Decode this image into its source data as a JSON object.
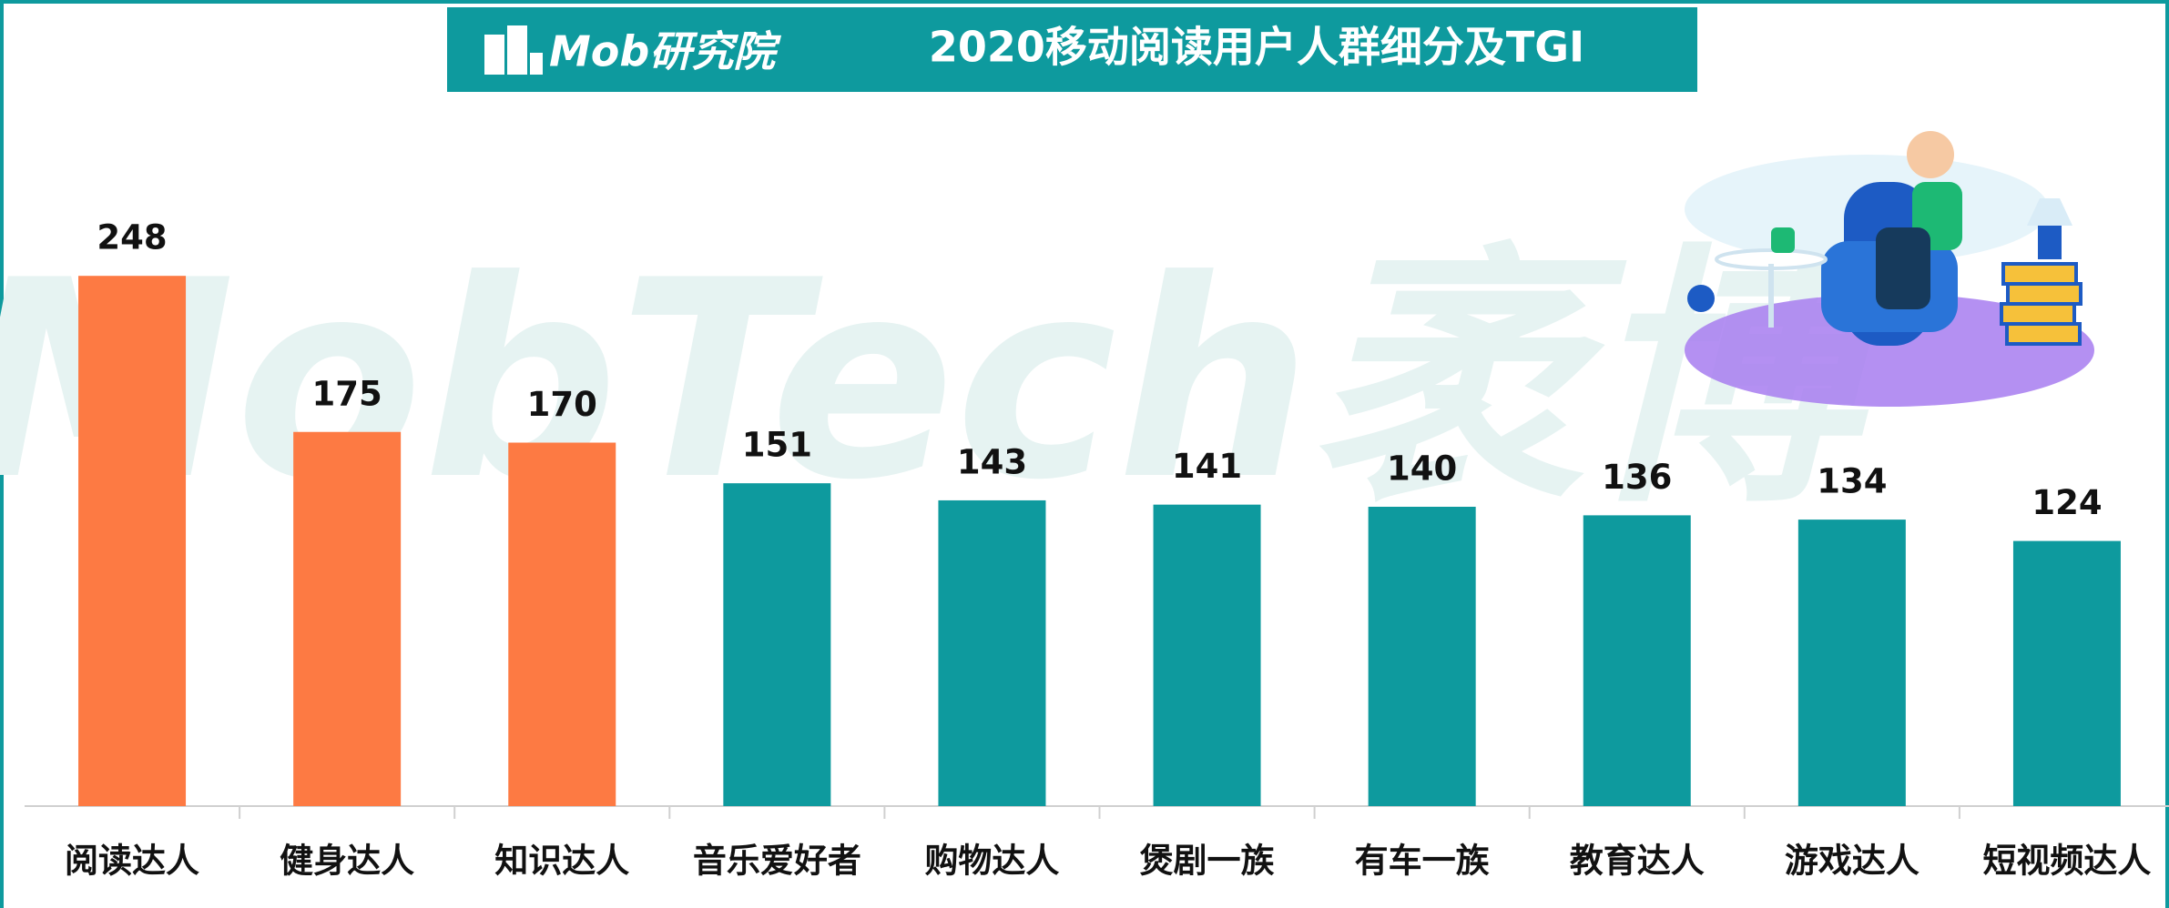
{
  "logo": "Mob研究院",
  "watermark": "MobTech袤博",
  "chart_data": {
    "type": "bar",
    "title": "2020移动阅读用户人群细分及TGI",
    "categories": [
      "阅读达人",
      "健身达人",
      "知识达人",
      "音乐爱好者",
      "购物达人",
      "煲剧一族",
      "有车一族",
      "教育达人",
      "游戏达人",
      "短视频达人"
    ],
    "values": [
      248,
      175,
      170,
      151,
      143,
      141,
      140,
      136,
      134,
      124
    ],
    "colors": [
      "#fd7a43",
      "#fd7a43",
      "#fd7a43",
      "#0e9a9e",
      "#0e9a9e",
      "#0e9a9e",
      "#0e9a9e",
      "#0e9a9e",
      "#0e9a9e",
      "#0e9a9e"
    ]
  }
}
